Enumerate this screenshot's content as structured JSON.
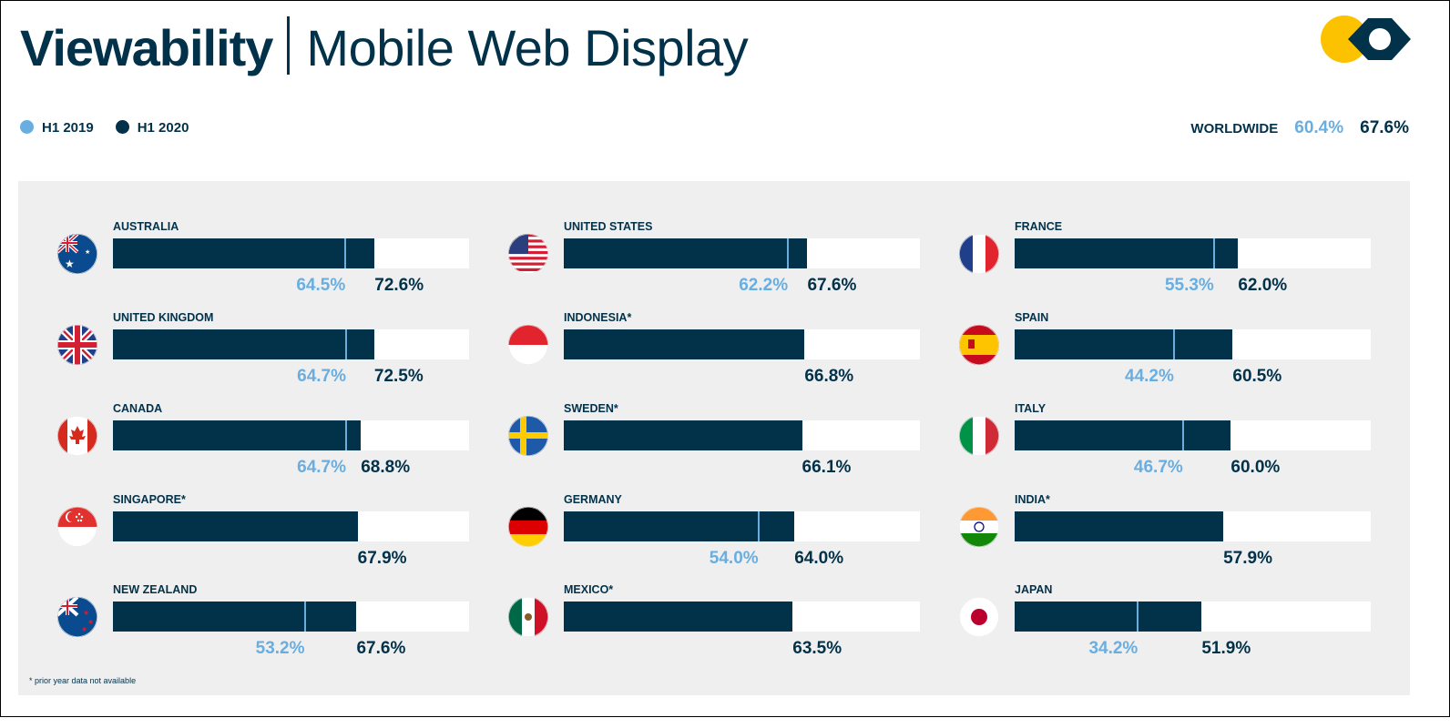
{
  "header": {
    "title_bold": "Viewability",
    "title_light": "Mobile Web Display"
  },
  "legend": [
    {
      "label": "H1 2019",
      "color": "#6aaee0"
    },
    {
      "label": "H1 2020",
      "color": "#02314a"
    }
  ],
  "worldwide": {
    "label": "WORLDWIDE",
    "h1_2019": "60.4%",
    "h1_2020": "67.6%"
  },
  "footnote": "* prior year data not available",
  "chart_data": {
    "type": "bar",
    "title": "Viewability | Mobile Web Display",
    "orientation": "horizontal",
    "xlim": [
      0,
      100
    ],
    "unit": "%",
    "series_names": [
      "H1 2019",
      "H1 2020"
    ],
    "countries": [
      {
        "name": "AUSTRALIA",
        "flag": "au",
        "h1_2019": 64.5,
        "h1_2020": 72.6,
        "l19": "64.5%",
        "l20": "72.6%"
      },
      {
        "name": "UNITED KINGDOM",
        "flag": "gb",
        "h1_2019": 64.7,
        "h1_2020": 72.5,
        "l19": "64.7%",
        "l20": "72.5%"
      },
      {
        "name": "CANADA",
        "flag": "ca",
        "h1_2019": 64.7,
        "h1_2020": 68.8,
        "l19": "64.7%",
        "l20": "68.8%"
      },
      {
        "name": "SINGAPORE*",
        "flag": "sg",
        "h1_2019": null,
        "h1_2020": 67.9,
        "l19": null,
        "l20": "67.9%"
      },
      {
        "name": "NEW ZEALAND",
        "flag": "nz",
        "h1_2019": 53.2,
        "h1_2020": 67.6,
        "l19": "53.2%",
        "l20": "67.6%"
      },
      {
        "name": "UNITED STATES",
        "flag": "us",
        "h1_2019": 62.2,
        "h1_2020": 67.6,
        "l19": "62.2%",
        "l20": "67.6%"
      },
      {
        "name": "INDONESIA*",
        "flag": "id",
        "h1_2019": null,
        "h1_2020": 66.8,
        "l19": null,
        "l20": "66.8%"
      },
      {
        "name": "SWEDEN*",
        "flag": "se",
        "h1_2019": null,
        "h1_2020": 66.1,
        "l19": null,
        "l20": "66.1%"
      },
      {
        "name": "GERMANY",
        "flag": "de",
        "h1_2019": 54.0,
        "h1_2020": 64.0,
        "l19": "54.0%",
        "l20": "64.0%"
      },
      {
        "name": "MEXICO*",
        "flag": "mx",
        "h1_2019": null,
        "h1_2020": 63.5,
        "l19": null,
        "l20": "63.5%"
      },
      {
        "name": "FRANCE",
        "flag": "fr",
        "h1_2019": 55.3,
        "h1_2020": 62.0,
        "l19": "55.3%",
        "l20": "62.0%"
      },
      {
        "name": "SPAIN",
        "flag": "es",
        "h1_2019": 44.2,
        "h1_2020": 60.5,
        "l19": "44.2%",
        "l20": "60.5%"
      },
      {
        "name": "ITALY",
        "flag": "it",
        "h1_2019": 46.7,
        "h1_2020": 60.0,
        "l19": "46.7%",
        "l20": "60.0%"
      },
      {
        "name": "INDIA*",
        "flag": "in",
        "h1_2019": null,
        "h1_2020": 57.9,
        "l19": null,
        "l20": "57.9%"
      },
      {
        "name": "JAPAN",
        "flag": "jp",
        "h1_2019": 34.2,
        "h1_2020": 51.9,
        "l19": "34.2%",
        "l20": "51.9%"
      }
    ]
  }
}
